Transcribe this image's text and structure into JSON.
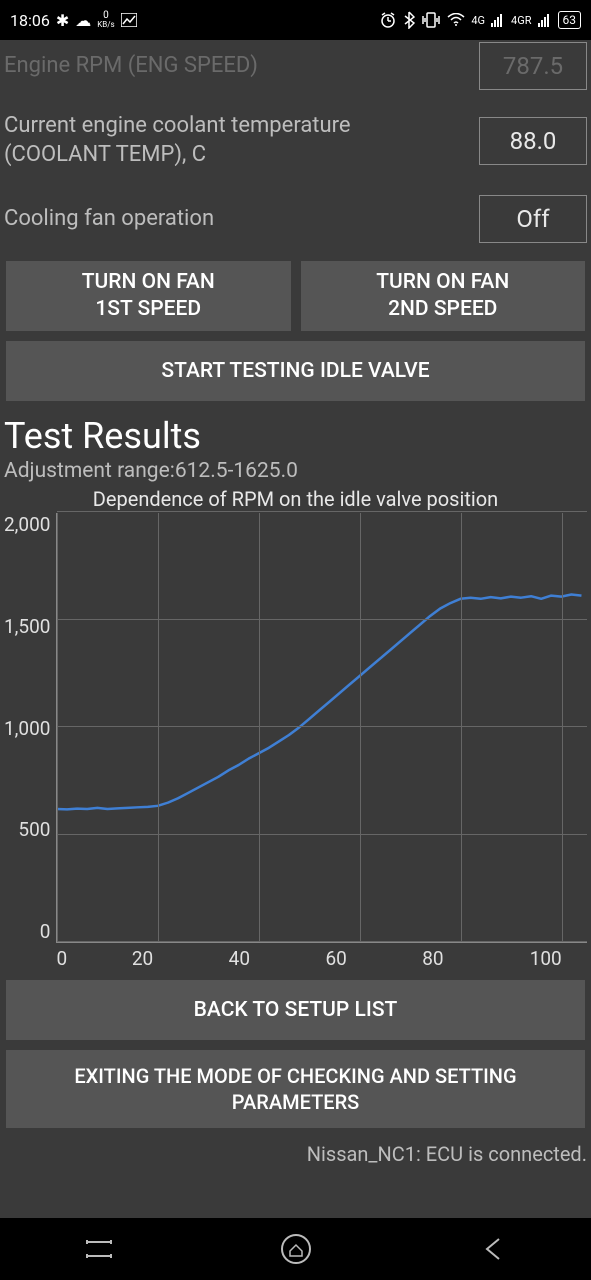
{
  "statusbar": {
    "time": "18:06",
    "kbs_value": "0",
    "kbs_unit": "KB/s",
    "network_label_1": "4G",
    "network_label_2": "4GR",
    "battery": "63"
  },
  "readings": {
    "rpm_label": "Engine RPM (ENG SPEED)",
    "rpm_value": "787.5",
    "coolant_label_1": "Current engine coolant temperature",
    "coolant_label_2": "(COOLANT TEMP), C",
    "coolant_value": "88.0",
    "fan_label": "Cooling fan operation",
    "fan_value": "Off"
  },
  "buttons": {
    "fan1_l1": "TURN ON FAN",
    "fan1_l2": "1ST SPEED",
    "fan2_l1": "TURN ON FAN",
    "fan2_l2": "2ND SPEED",
    "start_test": "START TESTING IDLE VALVE",
    "back": "BACK TO SETUP LIST",
    "exit_l1": "EXITING THE MODE OF CHECKING AND SETTING",
    "exit_l2": "PARAMETERS"
  },
  "results": {
    "header": "Test Results",
    "adj_range": "Adjustment range:612.5-1625.0"
  },
  "chart": {
    "title": "Dependence of RPM on the idle valve position",
    "type": "line",
    "xlim": [
      0,
      105
    ],
    "ylim": [
      0,
      2000
    ],
    "ytick_step": 500,
    "xtick_step": 20,
    "ylabels": [
      "2,000",
      "1,500",
      "1,000",
      "500",
      "0"
    ],
    "xlabels": [
      "0",
      "20",
      "40",
      "60",
      "80",
      "100"
    ],
    "line_color": "#3f7fd4",
    "line_width": 2.5,
    "grid_color": "#666666",
    "background_color": "#3a3a3a",
    "text_color": "#e0e0e0",
    "title_fontsize": 20,
    "label_fontsize": 19,
    "data": [
      {
        "x": 0,
        "y": 620
      },
      {
        "x": 2,
        "y": 618
      },
      {
        "x": 4,
        "y": 622
      },
      {
        "x": 6,
        "y": 620
      },
      {
        "x": 8,
        "y": 625
      },
      {
        "x": 10,
        "y": 620
      },
      {
        "x": 12,
        "y": 623
      },
      {
        "x": 14,
        "y": 625
      },
      {
        "x": 16,
        "y": 628
      },
      {
        "x": 18,
        "y": 630
      },
      {
        "x": 20,
        "y": 635
      },
      {
        "x": 22,
        "y": 650
      },
      {
        "x": 24,
        "y": 670
      },
      {
        "x": 26,
        "y": 695
      },
      {
        "x": 28,
        "y": 720
      },
      {
        "x": 30,
        "y": 745
      },
      {
        "x": 32,
        "y": 770
      },
      {
        "x": 34,
        "y": 800
      },
      {
        "x": 36,
        "y": 825
      },
      {
        "x": 38,
        "y": 855
      },
      {
        "x": 40,
        "y": 880
      },
      {
        "x": 42,
        "y": 905
      },
      {
        "x": 44,
        "y": 935
      },
      {
        "x": 46,
        "y": 965
      },
      {
        "x": 48,
        "y": 1000
      },
      {
        "x": 50,
        "y": 1040
      },
      {
        "x": 52,
        "y": 1080
      },
      {
        "x": 54,
        "y": 1120
      },
      {
        "x": 56,
        "y": 1160
      },
      {
        "x": 58,
        "y": 1200
      },
      {
        "x": 60,
        "y": 1240
      },
      {
        "x": 62,
        "y": 1280
      },
      {
        "x": 64,
        "y": 1320
      },
      {
        "x": 66,
        "y": 1360
      },
      {
        "x": 68,
        "y": 1400
      },
      {
        "x": 70,
        "y": 1440
      },
      {
        "x": 72,
        "y": 1480
      },
      {
        "x": 74,
        "y": 1520
      },
      {
        "x": 76,
        "y": 1555
      },
      {
        "x": 78,
        "y": 1580
      },
      {
        "x": 80,
        "y": 1600
      },
      {
        "x": 82,
        "y": 1605
      },
      {
        "x": 84,
        "y": 1600
      },
      {
        "x": 86,
        "y": 1608
      },
      {
        "x": 88,
        "y": 1602
      },
      {
        "x": 90,
        "y": 1610
      },
      {
        "x": 92,
        "y": 1605
      },
      {
        "x": 94,
        "y": 1612
      },
      {
        "x": 96,
        "y": 1600
      },
      {
        "x": 98,
        "y": 1615
      },
      {
        "x": 100,
        "y": 1610
      },
      {
        "x": 102,
        "y": 1620
      },
      {
        "x": 104,
        "y": 1615
      }
    ]
  },
  "footer": {
    "status": "Nissan_NC1: ECU is connected."
  }
}
